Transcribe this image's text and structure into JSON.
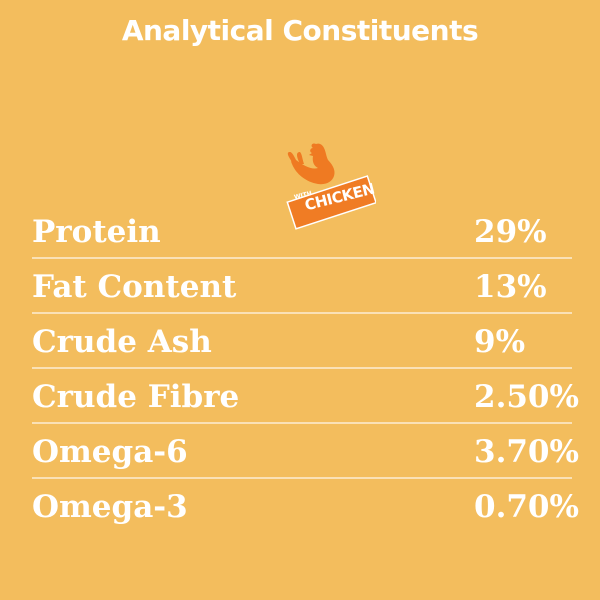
{
  "header": {
    "title": "Analytical Constituents"
  },
  "badge": {
    "icon": "chicken-icon",
    "small_text": "WITH",
    "main_text": "CHICKEN",
    "colors": {
      "badge_orange": "#f07c24",
      "chicken_orange": "#ef7a22",
      "badge_text": "#ffffff"
    }
  },
  "colors": {
    "background": "#f3bd5d",
    "text": "#ffffff",
    "divider": "#fbe0a9"
  },
  "constituents": [
    {
      "label": "Protein",
      "value": "29%"
    },
    {
      "label": "Fat Content",
      "value": "13%"
    },
    {
      "label": "Crude Ash",
      "value": "9%"
    },
    {
      "label": "Crude Fibre",
      "value": "2.50%"
    },
    {
      "label": "Omega-6",
      "value": "3.70%"
    },
    {
      "label": "Omega-3",
      "value": "0.70%"
    }
  ]
}
